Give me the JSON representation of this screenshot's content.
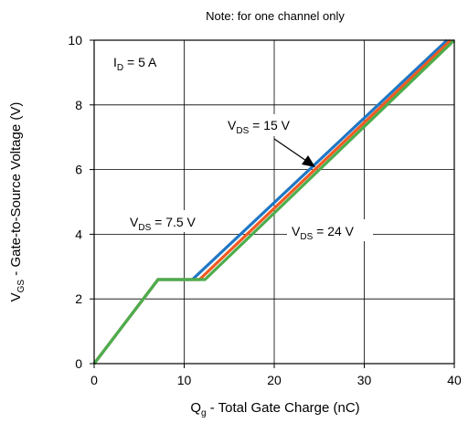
{
  "chart_data": {
    "type": "line",
    "note": "Note: for one channel only",
    "xlabel": {
      "main": "Q",
      "sub": "g",
      "rest": " - Total Gate Charge (nC)"
    },
    "ylabel": {
      "main": "V",
      "sub": "GS",
      "rest": " - Gate-to-Source Voltage (V)"
    },
    "xlim": [
      0,
      40
    ],
    "ylim": [
      0,
      10
    ],
    "xticks": [
      0,
      10,
      20,
      30,
      40
    ],
    "yticks": [
      0,
      2,
      4,
      6,
      8,
      10
    ],
    "grid": true,
    "series": [
      {
        "name": "VDS = 7.5 V",
        "color": "#1f77c4",
        "x": [
          0,
          7.1,
          10.9,
          39.2
        ],
        "y": [
          0,
          2.6,
          2.6,
          10
        ]
      },
      {
        "name": "VDS = 15 V",
        "color": "#f25a22",
        "x": [
          0,
          7.1,
          11.7,
          39.6
        ],
        "y": [
          0,
          2.6,
          2.6,
          10
        ]
      },
      {
        "name": "VDS = 24 V",
        "color": "#4cae4c",
        "x": [
          0,
          7.1,
          12.3,
          40.0
        ],
        "y": [
          0,
          2.6,
          2.6,
          10
        ]
      }
    ],
    "annotations": {
      "id": {
        "main": "I",
        "sub": "D",
        "rest": " = 5 A"
      },
      "vds15": {
        "main": "V",
        "sub": "DS",
        "rest": " = 15 V"
      },
      "vds75": {
        "main": "V",
        "sub": "DS",
        "rest": " = 7.5 V"
      },
      "vds24": {
        "main": "V",
        "sub": "DS",
        "rest": " = 24 V"
      }
    }
  }
}
